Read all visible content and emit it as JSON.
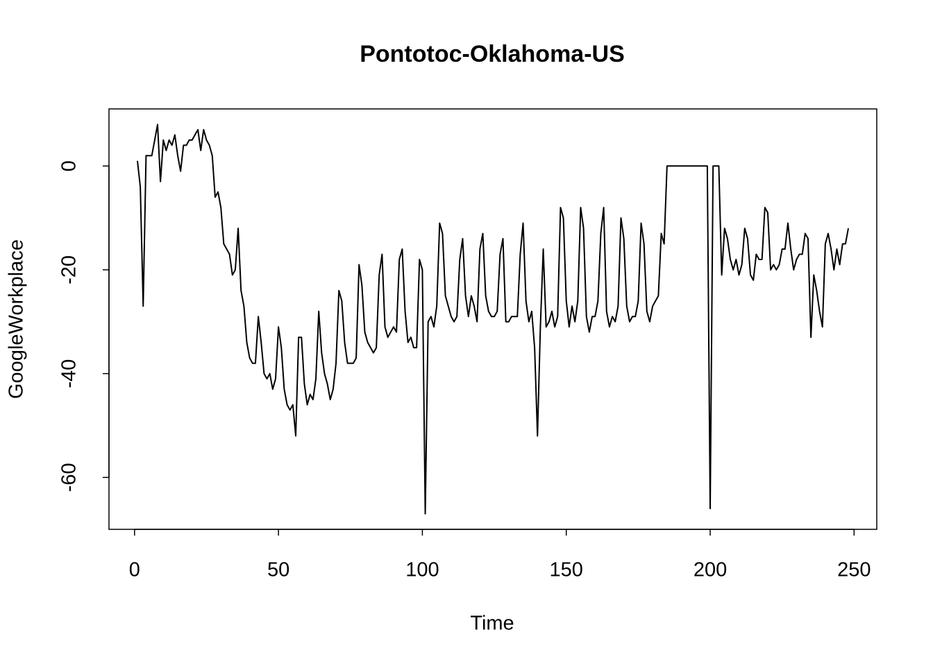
{
  "chart_data": {
    "type": "line",
    "title": "Pontotoc-Oklahoma-US",
    "x_label": "Time",
    "y_label": "GoogleWorkplace",
    "xlim": [
      -8.88,
      257.88
    ],
    "ylim": [
      -70,
      11
    ],
    "xticks": [
      0,
      50,
      100,
      150,
      200,
      250
    ],
    "yticks": [
      -60,
      -40,
      -20,
      0
    ],
    "x": [
      1,
      2,
      3,
      4,
      5,
      6,
      7,
      8,
      9,
      10,
      11,
      12,
      13,
      14,
      15,
      16,
      17,
      18,
      19,
      20,
      21,
      22,
      23,
      24,
      25,
      26,
      27,
      28,
      29,
      30,
      31,
      32,
      33,
      34,
      35,
      36,
      37,
      38,
      39,
      40,
      41,
      42,
      43,
      44,
      45,
      46,
      47,
      48,
      49,
      50,
      51,
      52,
      53,
      54,
      55,
      56,
      57,
      58,
      59,
      60,
      61,
      62,
      63,
      64,
      65,
      66,
      67,
      68,
      69,
      70,
      71,
      72,
      73,
      74,
      75,
      76,
      77,
      78,
      79,
      80,
      81,
      82,
      83,
      84,
      85,
      86,
      87,
      88,
      89,
      90,
      91,
      92,
      93,
      94,
      95,
      96,
      97,
      98,
      99,
      100,
      101,
      102,
      103,
      104,
      105,
      106,
      107,
      108,
      109,
      110,
      111,
      112,
      113,
      114,
      115,
      116,
      117,
      118,
      119,
      120,
      121,
      122,
      123,
      124,
      125,
      126,
      127,
      128,
      129,
      130,
      131,
      132,
      133,
      134,
      135,
      136,
      137,
      138,
      139,
      140,
      141,
      142,
      143,
      144,
      145,
      146,
      147,
      148,
      149,
      150,
      151,
      152,
      153,
      154,
      155,
      156,
      157,
      158,
      159,
      160,
      161,
      162,
      163,
      164,
      165,
      166,
      167,
      168,
      169,
      170,
      171,
      172,
      173,
      174,
      175,
      176,
      177,
      178,
      179,
      180,
      181,
      182,
      183,
      184,
      185,
      186,
      187,
      188,
      189,
      190,
      191,
      192,
      193,
      194,
      195,
      196,
      197,
      198,
      199,
      200,
      201,
      202,
      203,
      204,
      205,
      206,
      207,
      208,
      209,
      210,
      211,
      212,
      213,
      214,
      215,
      216,
      217,
      218,
      219,
      220,
      221,
      222,
      223,
      224,
      225,
      226,
      227,
      228,
      229,
      230,
      231,
      232,
      233,
      234,
      235,
      236,
      237,
      238,
      239,
      240,
      241,
      242,
      243,
      244,
      245,
      246,
      247,
      248
    ],
    "series": [
      {
        "name": "GoogleWorkplace",
        "color": "#000000",
        "values": [
          1,
          -4,
          -27,
          2,
          2,
          2,
          5,
          8,
          -3,
          5,
          3,
          5,
          4,
          6,
          2,
          -1,
          4,
          4,
          5,
          5,
          6,
          7,
          3,
          7,
          5,
          4,
          2,
          -6,
          -5,
          -8,
          -15,
          -16,
          -17,
          -21,
          -20,
          -12,
          -24,
          -27,
          -34,
          -37,
          -38,
          -38,
          -29,
          -34,
          -40,
          -41,
          -40,
          -43,
          -41,
          -31,
          -35,
          -43,
          -46,
          -47,
          -46,
          -52,
          -33,
          -33,
          -42,
          -46,
          -44,
          -45,
          -41,
          -28,
          -36,
          -40,
          -42,
          -45,
          -43,
          -38,
          -24,
          -26,
          -34,
          -38,
          -38,
          -38,
          -37,
          -19,
          -23,
          -32,
          -34,
          -35,
          -36,
          -35,
          -21,
          -17,
          -31,
          -33,
          -32,
          -31,
          -32,
          -18,
          -16,
          -28,
          -34,
          -33,
          -35,
          -35,
          -18,
          -20,
          -67,
          -30,
          -29,
          -31,
          -27,
          -11,
          -13,
          -25,
          -27,
          -29,
          -30,
          -29,
          -18,
          -14,
          -25,
          -29,
          -25,
          -27,
          -30,
          -16,
          -13,
          -25,
          -28,
          -29,
          -29,
          -28,
          -17,
          -14,
          -30,
          -30,
          -29,
          -29,
          -29,
          -17,
          -11,
          -26,
          -30,
          -28,
          -35,
          -52,
          -31,
          -16,
          -31,
          -30,
          -28,
          -31,
          -29,
          -8,
          -10,
          -26,
          -31,
          -27,
          -30,
          -26,
          -8,
          -12,
          -29,
          -32,
          -29,
          -29,
          -26,
          -13,
          -8,
          -28,
          -31,
          -29,
          -30,
          -27,
          -10,
          -14,
          -27,
          -30,
          -29,
          -29,
          -26,
          -11,
          -15,
          -28,
          -30,
          -27,
          -26,
          -25,
          -13,
          -15,
          0,
          0,
          0,
          0,
          0,
          0,
          0,
          0,
          0,
          0,
          0,
          0,
          0,
          0,
          0,
          -66,
          0,
          0,
          0,
          -21,
          -12,
          -14,
          -18,
          -20,
          -18,
          -21,
          -19,
          -12,
          -14,
          -21,
          -22,
          -17,
          -18,
          -18,
          -8,
          -9,
          -20,
          -19,
          -20,
          -19,
          -16,
          -16,
          -11,
          -16,
          -20,
          -18,
          -17,
          -17,
          -13,
          -14,
          -33,
          -21,
          -24,
          -28,
          -31,
          -15,
          -13,
          -16,
          -20,
          -16,
          -19,
          -15,
          -15,
          -12
        ]
      }
    ]
  }
}
